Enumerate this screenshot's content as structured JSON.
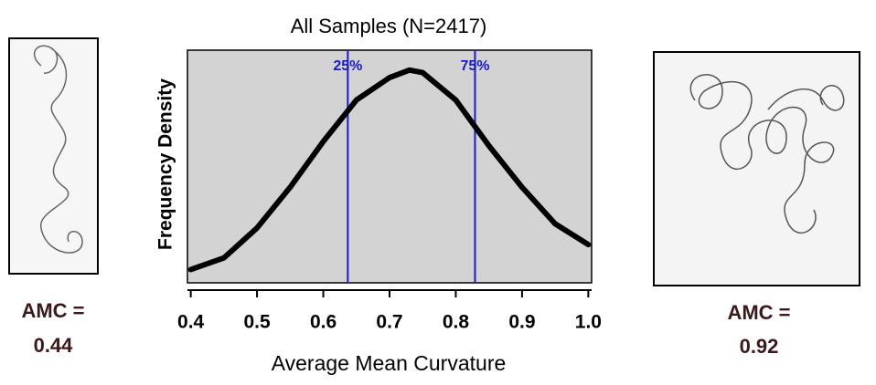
{
  "chart_data": {
    "type": "line",
    "title": "All Samples (N=2417)",
    "xlabel": "Average Mean Curvature",
    "ylabel": "Frequency Density",
    "x": [
      0.4,
      0.45,
      0.5,
      0.55,
      0.6,
      0.65,
      0.7,
      0.73,
      0.75,
      0.8,
      0.85,
      0.9,
      0.95,
      1.0
    ],
    "series": [
      {
        "name": "density",
        "color": "#000000",
        "values": [
          0.16,
          0.3,
          0.66,
          1.15,
          1.7,
          2.2,
          2.47,
          2.56,
          2.53,
          2.2,
          1.65,
          1.15,
          0.71,
          0.46
        ]
      }
    ],
    "xlim": [
      0.395,
      1.005
    ],
    "ylim": [
      0,
      2.8
    ],
    "xticks": [
      {
        "value": 0.4,
        "label": "0.4"
      },
      {
        "value": 0.5,
        "label": "0.5"
      },
      {
        "value": 0.6,
        "label": "0.6"
      },
      {
        "value": 0.7,
        "label": "0.7"
      },
      {
        "value": 0.8,
        "label": "0.8"
      },
      {
        "value": 0.9,
        "label": "0.9"
      },
      {
        "value": 1.0,
        "label": "1.0"
      }
    ],
    "quartiles": [
      {
        "value": 0.637,
        "label": "25%"
      },
      {
        "value": 0.829,
        "label": "75%"
      }
    ],
    "quartile_color": "#1a1acc",
    "background": "#d3d3d3"
  },
  "samples": [
    {
      "label": "AMC =",
      "value": "0.44"
    },
    {
      "label": "AMC =",
      "value": "0.92"
    }
  ]
}
